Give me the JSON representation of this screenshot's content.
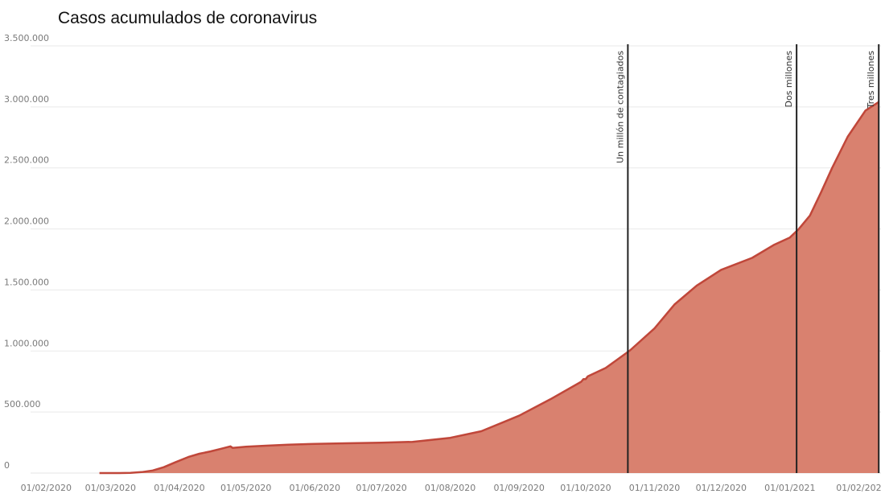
{
  "chart_data": {
    "type": "area",
    "title": "Casos acumulados de coronavirus",
    "xlabel": "",
    "ylabel": "",
    "ylim": [
      0,
      3500000
    ],
    "grid": true,
    "legend": "none",
    "colors": {
      "fill": "#d9816f",
      "line": "#c0473a",
      "annotation": "#222222"
    },
    "y_ticks": [
      {
        "value": 0,
        "label": "0"
      },
      {
        "value": 500000,
        "label": "500.000"
      },
      {
        "value": 1000000,
        "label": "1.000.000"
      },
      {
        "value": 1500000,
        "label": "1.500.000"
      },
      {
        "value": 2000000,
        "label": "2.000.000"
      },
      {
        "value": 2500000,
        "label": "2.500.000"
      },
      {
        "value": 3000000,
        "label": "3.000.000"
      },
      {
        "value": 3500000,
        "label": "3.500.000"
      }
    ],
    "x_ticks": [
      {
        "date": "2020-02-01",
        "label": "01/02/2020"
      },
      {
        "date": "2020-03-01",
        "label": "01/03/2020"
      },
      {
        "date": "2020-04-01",
        "label": "01/04/2020"
      },
      {
        "date": "2020-05-01",
        "label": "01/05/2020"
      },
      {
        "date": "2020-06-01",
        "label": "01/06/2020"
      },
      {
        "date": "2020-07-01",
        "label": "01/07/2020"
      },
      {
        "date": "2020-08-01",
        "label": "01/08/2020"
      },
      {
        "date": "2020-09-01",
        "label": "01/09/2020"
      },
      {
        "date": "2020-10-01",
        "label": "01/10/2020"
      },
      {
        "date": "2020-11-01",
        "label": "01/11/2020"
      },
      {
        "date": "2020-12-01",
        "label": "01/12/2020"
      },
      {
        "date": "2021-01-01",
        "label": "01/01/2021"
      },
      {
        "date": "2021-02-01",
        "label": "01/02/202"
      }
    ],
    "xlim": [
      "2020-01-25",
      "2021-02-11"
    ],
    "series": [
      {
        "points": [
          [
            "2020-02-25",
            0
          ],
          [
            "2020-03-05",
            300
          ],
          [
            "2020-03-10",
            1700
          ],
          [
            "2020-03-15",
            8000
          ],
          [
            "2020-03-20",
            21000
          ],
          [
            "2020-03-25",
            48000
          ],
          [
            "2020-03-30",
            87000
          ],
          [
            "2020-04-05",
            131000
          ],
          [
            "2020-04-10",
            158000
          ],
          [
            "2020-04-15",
            177000
          ],
          [
            "2020-04-20",
            200000
          ],
          [
            "2020-04-24",
            219000
          ],
          [
            "2020-04-25",
            206000
          ],
          [
            "2020-05-01",
            216000
          ],
          [
            "2020-05-10",
            224000
          ],
          [
            "2020-05-20",
            233000
          ],
          [
            "2020-06-01",
            239000
          ],
          [
            "2020-06-15",
            244000
          ],
          [
            "2020-07-01",
            249000
          ],
          [
            "2020-07-15",
            256000
          ],
          [
            "2020-08-01",
            289000
          ],
          [
            "2020-08-15",
            343000
          ],
          [
            "2020-09-01",
            470000
          ],
          [
            "2020-09-15",
            604000
          ],
          [
            "2020-09-29",
            748000
          ],
          [
            "2020-09-30",
            770000
          ],
          [
            "2020-10-01",
            769000
          ],
          [
            "2020-10-02",
            793000
          ],
          [
            "2020-10-10",
            861000
          ],
          [
            "2020-10-21",
            1005000
          ],
          [
            "2020-11-01",
            1185000
          ],
          [
            "2020-11-10",
            1381000
          ],
          [
            "2020-11-20",
            1535000
          ],
          [
            "2020-12-01",
            1665000
          ],
          [
            "2020-12-15",
            1763000
          ],
          [
            "2020-12-25",
            1871000
          ],
          [
            "2021-01-01",
            1930000
          ],
          [
            "2021-01-05",
            2000000
          ],
          [
            "2021-01-10",
            2110000
          ],
          [
            "2021-01-15",
            2300000
          ],
          [
            "2021-01-20",
            2500000
          ],
          [
            "2021-01-27",
            2755000
          ],
          [
            "2021-02-04",
            2970000
          ],
          [
            "2021-02-10",
            3040000
          ]
        ]
      }
    ],
    "annotations": [
      {
        "date": "2020-10-20",
        "label": "Un millón de contagiados"
      },
      {
        "date": "2021-01-04",
        "label": "Dos millones"
      },
      {
        "date": "2021-02-10",
        "label": "Tres millones"
      }
    ]
  }
}
